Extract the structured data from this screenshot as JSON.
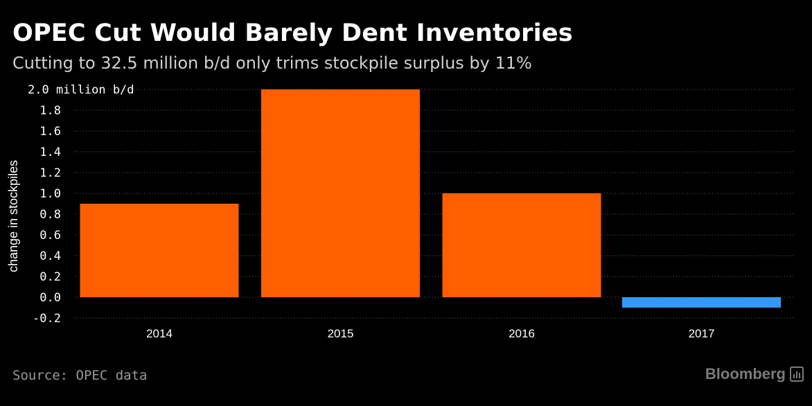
{
  "header": {
    "title": "OPEC Cut Would Barely Dent Inventories",
    "subtitle": "Cutting to 32.5 million b/d only trims stockpile surplus by 11%"
  },
  "footer": {
    "source": "Source: OPEC data",
    "brand": "Bloomberg"
  },
  "colors": {
    "positive": "#FF5F00",
    "negative": "#3399FF",
    "grid": "#666666"
  },
  "chart_data": {
    "type": "bar",
    "title": "OPEC Cut Would Barely Dent Inventories",
    "ylabel": "change in stockpiles",
    "yunit": "million b/d",
    "categories": [
      "2014",
      "2015",
      "2016",
      "2017"
    ],
    "values": [
      0.9,
      2.0,
      1.0,
      -0.1
    ],
    "ylim": [
      -0.2,
      2.0
    ],
    "yticks": [
      2.0,
      1.8,
      1.6,
      1.4,
      1.2,
      1.0,
      0.8,
      0.6,
      0.4,
      0.2,
      0.0,
      -0.2
    ],
    "ytick_labels": [
      "2.0",
      "1.8",
      "1.6",
      "1.4",
      "1.2",
      "1.0",
      "0.8",
      "0.6",
      "0.4",
      "0.2",
      "0.0",
      "-0.2"
    ],
    "grid": true
  }
}
